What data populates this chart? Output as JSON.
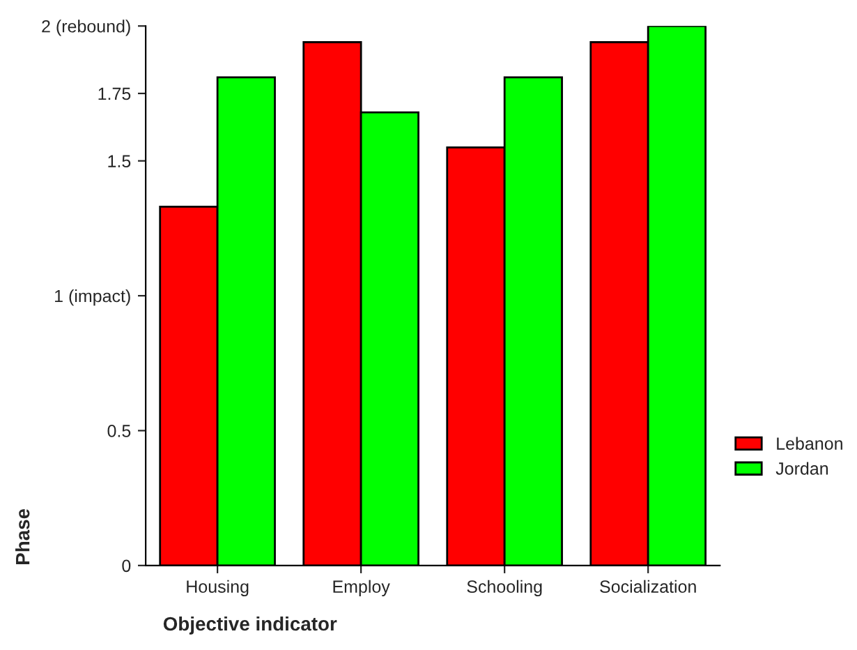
{
  "chart_data": {
    "type": "bar",
    "xlabel": "Objective indicator",
    "ylabel": "Phase",
    "categories": [
      "Housing",
      "Employ",
      "Schooling",
      "Socialization"
    ],
    "series": [
      {
        "name": "Lebanon",
        "color": "#ff0000",
        "values": [
          1.33,
          1.94,
          1.55,
          1.94
        ]
      },
      {
        "name": "Jordan",
        "color": "#00ff00",
        "values": [
          1.81,
          1.68,
          1.81,
          2.0
        ]
      }
    ],
    "ylim": [
      0,
      2
    ],
    "yticks": [
      0,
      0.5,
      {
        "value": 1,
        "label": "1 (impact)"
      },
      1.5,
      1.75,
      {
        "value": 2,
        "label": "2 (rebound)"
      }
    ],
    "grid": false,
    "legend": "right"
  }
}
